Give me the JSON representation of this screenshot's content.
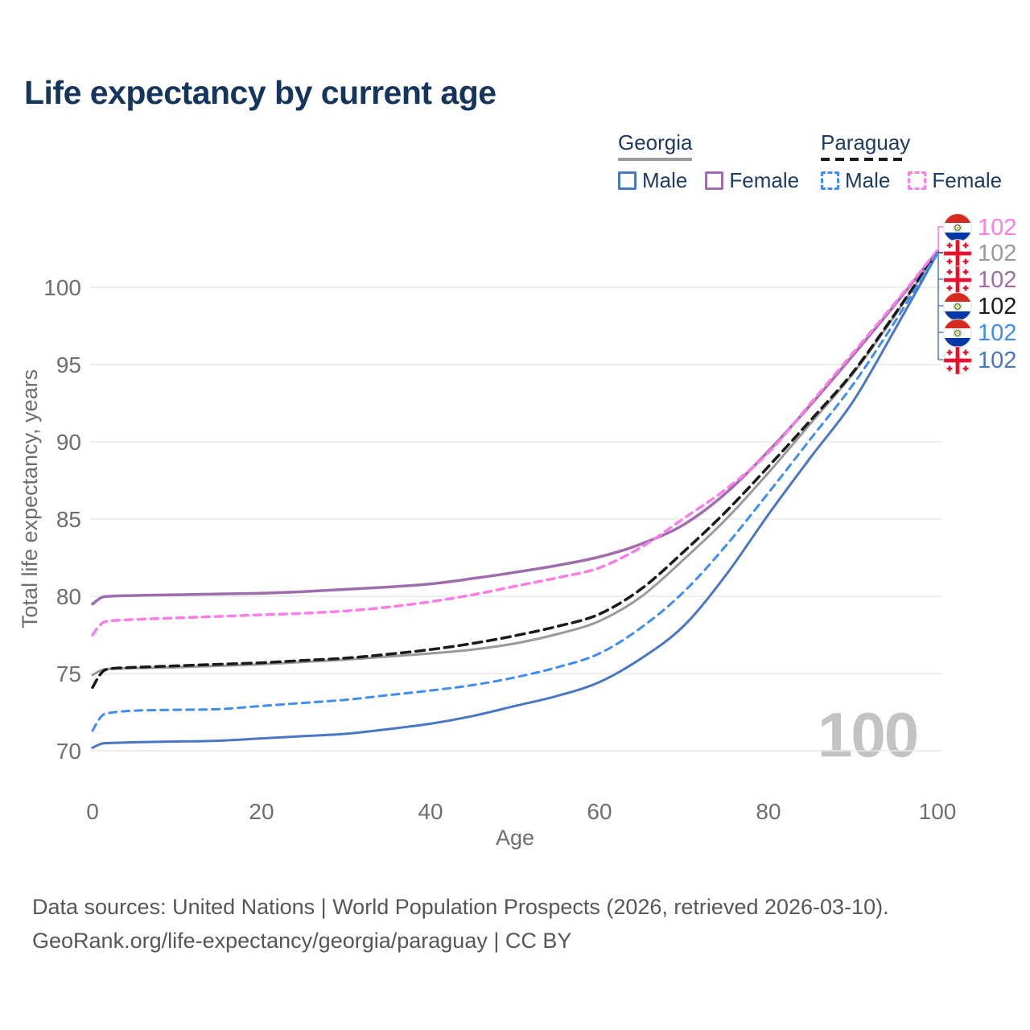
{
  "page": {
    "title": "Life expectancy by current age"
  },
  "legend": {
    "groups": [
      {
        "country": "Georgia",
        "line_style": "solid",
        "line_color": "#9a9a9a",
        "items": [
          {
            "label": "Male",
            "color": "#4a77c4",
            "dashed": false
          },
          {
            "label": "Female",
            "color": "#a06dac",
            "dashed": false
          }
        ]
      },
      {
        "country": "Paraguay",
        "line_style": "dashed",
        "line_color": "#1a1a1a",
        "items": [
          {
            "label": "Male",
            "color": "#3f8cf2",
            "dashed": true
          },
          {
            "label": "Female",
            "color": "#fb7de6",
            "dashed": true
          }
        ]
      }
    ]
  },
  "chart_data": {
    "type": "line",
    "title": "Life expectancy by current age",
    "xlabel": "Age",
    "ylabel": "Total life expectancy, years",
    "xlim": [
      0,
      100
    ],
    "ylim": [
      68,
      103
    ],
    "x_ticks": [
      0,
      20,
      40,
      60,
      80,
      100
    ],
    "y_ticks": [
      70,
      75,
      80,
      85,
      90,
      95,
      100
    ],
    "grid": "horizontal-only",
    "legend_position": "top-right",
    "x": [
      0,
      1,
      2,
      5,
      10,
      15,
      20,
      25,
      30,
      35,
      40,
      45,
      50,
      55,
      60,
      65,
      70,
      75,
      80,
      85,
      90,
      95,
      100
    ],
    "series": [
      {
        "name": "Georgia (both sexes)",
        "country": "Georgia",
        "group": "All",
        "style": "solid",
        "color": "#9a9a9a",
        "width": 3,
        "end_label": "102",
        "values": [
          74.9,
          75.2,
          75.3,
          75.35,
          75.4,
          75.5,
          75.6,
          75.75,
          75.9,
          76.1,
          76.3,
          76.55,
          76.95,
          77.55,
          78.4,
          80.0,
          82.4,
          85.0,
          88.0,
          91.2,
          94.4,
          98.2,
          102.3
        ]
      },
      {
        "name": "Georgia Female",
        "country": "Georgia",
        "group": "Female",
        "style": "solid",
        "color": "#a06dac",
        "width": 3.5,
        "end_label": "102",
        "values": [
          79.5,
          79.9,
          80.0,
          80.05,
          80.1,
          80.15,
          80.2,
          80.3,
          80.45,
          80.6,
          80.8,
          81.15,
          81.55,
          82.0,
          82.55,
          83.4,
          84.65,
          86.7,
          89.4,
          92.4,
          95.6,
          98.9,
          102.35
        ]
      },
      {
        "name": "Georgia Male",
        "country": "Georgia",
        "group": "Male",
        "style": "solid",
        "color": "#4a77c4",
        "width": 3,
        "end_label": "102",
        "values": [
          70.2,
          70.45,
          70.5,
          70.55,
          70.6,
          70.65,
          70.8,
          70.95,
          71.1,
          71.4,
          71.75,
          72.25,
          72.9,
          73.55,
          74.45,
          76.0,
          78.1,
          81.4,
          85.3,
          89.0,
          92.6,
          97.3,
          102.2
        ]
      },
      {
        "name": "Paraguay (both sexes)",
        "country": "Paraguay",
        "group": "All",
        "style": "dashed",
        "color": "#1a1a1a",
        "width": 3.5,
        "dash": "11 7",
        "end_label": "102",
        "values": [
          74.1,
          75.0,
          75.3,
          75.4,
          75.5,
          75.6,
          75.7,
          75.85,
          76.0,
          76.25,
          76.55,
          76.95,
          77.45,
          78.05,
          78.85,
          80.5,
          82.9,
          85.5,
          88.4,
          91.4,
          94.5,
          98.3,
          102.3
        ]
      },
      {
        "name": "Paraguay Female",
        "country": "Paraguay",
        "group": "Female",
        "style": "dashed",
        "color": "#fb7de6",
        "width": 3.5,
        "dash": "9 7",
        "end_label": "102",
        "values": [
          77.5,
          78.2,
          78.4,
          78.5,
          78.6,
          78.7,
          78.8,
          78.9,
          79.05,
          79.3,
          79.65,
          80.1,
          80.65,
          81.2,
          81.85,
          83.2,
          85.05,
          86.95,
          89.3,
          92.5,
          95.75,
          99.0,
          102.4
        ]
      },
      {
        "name": "Paraguay Male",
        "country": "Paraguay",
        "group": "Male",
        "style": "dashed",
        "color": "#3f8cf2",
        "width": 3,
        "dash": "9 7",
        "end_label": "102",
        "values": [
          71.3,
          72.2,
          72.45,
          72.6,
          72.65,
          72.7,
          72.9,
          73.1,
          73.3,
          73.6,
          73.9,
          74.25,
          74.75,
          75.4,
          76.3,
          78.0,
          80.3,
          83.3,
          86.7,
          90.2,
          93.7,
          97.8,
          102.25
        ]
      }
    ]
  },
  "end_labels": [
    {
      "flag": "paraguay",
      "value": "102",
      "color": "#fb7de6"
    },
    {
      "flag": "georgia",
      "value": "102",
      "color": "#9a9a9a"
    },
    {
      "flag": "georgia",
      "value": "102",
      "color": "#a06dac"
    },
    {
      "flag": "paraguay",
      "value": "102",
      "color": "#1a1a1a"
    },
    {
      "flag": "paraguay",
      "value": "102",
      "color": "#3f8cf2"
    },
    {
      "flag": "georgia",
      "value": "102",
      "color": "#4a77c4"
    }
  ],
  "watermark": "100",
  "footer": {
    "line1": "Data sources: United Nations | World Population Prospects (2026, retrieved 2026-03-10).",
    "line2": "GeoRank.org/life-expectancy/georgia/paraguay | CC BY"
  },
  "colors": {
    "title_text": "#16355d",
    "legend_text": "#1d3a60",
    "axis_text": "#6e6e6e",
    "grid": "#e9e9e9",
    "watermark": "#c3c3c3",
    "footer_text": "#565656",
    "leader_pink": "#fb7de6",
    "leader_blue": "#5b7fbd"
  }
}
